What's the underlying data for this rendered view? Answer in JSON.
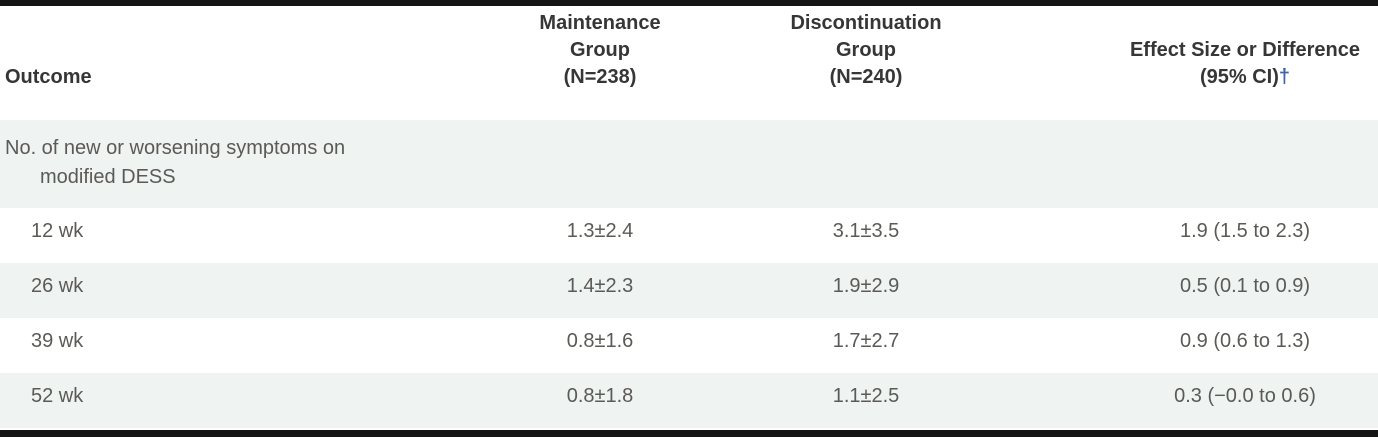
{
  "table": {
    "header": {
      "outcome": "Outcome",
      "maintenance": "Maintenance\nGroup\n(N=238)",
      "discontinuation": "Discontinuation\nGroup\n(N=240)",
      "effect": "Effect Size or Difference\n(95% CI)",
      "effect_footnote_mark": "†"
    },
    "section": {
      "line1": "No. of new or worsening symptoms on",
      "line2": "modified DESS"
    },
    "rows": [
      {
        "label": "12 wk",
        "maintenance": "1.3±2.4",
        "discontinuation": "3.1±3.5",
        "effect": "1.9 (1.5 to 2.3)"
      },
      {
        "label": "26 wk",
        "maintenance": "1.4±2.3",
        "discontinuation": "1.9±2.9",
        "effect": "0.5 (0.1 to 0.9)"
      },
      {
        "label": "39 wk",
        "maintenance": "0.8±1.6",
        "discontinuation": "1.7±2.7",
        "effect": "0.9 (0.6 to 1.3)"
      },
      {
        "label": "52 wk",
        "maintenance": "0.8±1.8",
        "discontinuation": "1.1±2.5",
        "effect": "0.3 (−0.0 to 0.6)"
      }
    ],
    "colors": {
      "row_shade": "#eff3f1",
      "header_text": "#363636",
      "body_text": "#5b5a56",
      "footnote_dagger": "#3e63ad",
      "rule_bar": "#151515"
    }
  }
}
